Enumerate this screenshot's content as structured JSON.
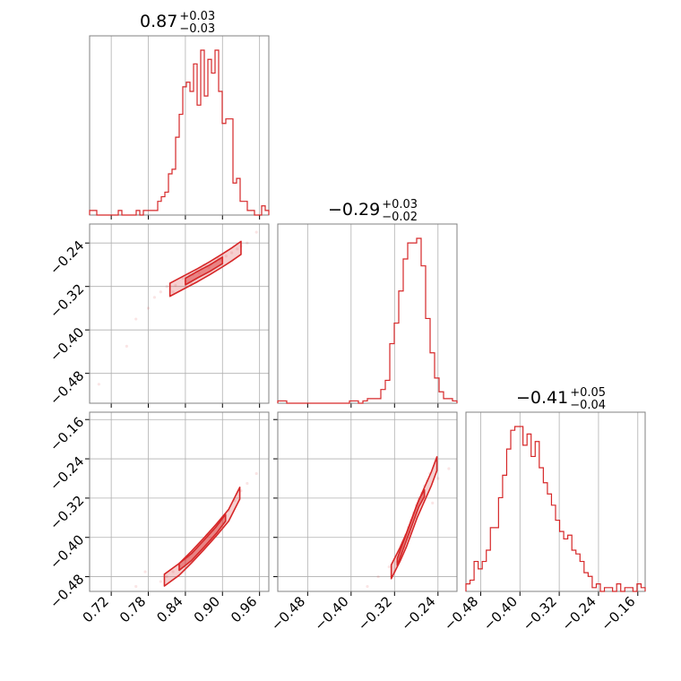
{
  "chart_data": {
    "type": "corner",
    "color": "#d62728",
    "grid": true,
    "parameters": [
      {
        "title": {
          "median": "0.87",
          "plus": "+0.03",
          "minus": "−0.03"
        },
        "range": [
          0.685,
          0.975
        ],
        "ticks": [
          0.72,
          0.78,
          0.84,
          0.9,
          0.96
        ],
        "tick_labels": [
          "0.72",
          "0.78",
          "0.84",
          "0.90",
          "0.96"
        ]
      },
      {
        "title": {
          "median": "−0.29",
          "plus": "+0.03",
          "minus": "−0.02"
        },
        "range": [
          -0.535,
          -0.205
        ],
        "ticks": [
          -0.48,
          -0.4,
          -0.32,
          -0.24
        ],
        "tick_labels": [
          "−0.48",
          "−0.40",
          "−0.32",
          "−0.24"
        ]
      },
      {
        "title": {
          "median": "−0.41",
          "plus": "+0.05",
          "minus": "−0.04"
        },
        "range": [
          -0.51,
          -0.145
        ],
        "ticks": [
          -0.48,
          -0.4,
          -0.32,
          -0.24,
          -0.16
        ],
        "tick_labels": [
          "−0.48",
          "−0.40",
          "−0.32",
          "−0.24",
          "−0.16"
        ]
      }
    ],
    "histograms": [
      {
        "param": 0,
        "bins": [
          0.685,
          0.975
        ],
        "counts": [
          1,
          1,
          0,
          0,
          0,
          0,
          0,
          0,
          1,
          0,
          0,
          0,
          0,
          1,
          0,
          1,
          1,
          1,
          1,
          3,
          4,
          5,
          9,
          10,
          17,
          22,
          28,
          29,
          27,
          33,
          24,
          36,
          26,
          34,
          31,
          36,
          27,
          20,
          21,
          21,
          7,
          8,
          3,
          3,
          1,
          1,
          0,
          0,
          2,
          1
        ]
      },
      {
        "param": 1,
        "bins": [
          -0.535,
          -0.205
        ],
        "counts": [
          1,
          1,
          0,
          0,
          0,
          0,
          0,
          0,
          0,
          0,
          0,
          0,
          0,
          0,
          0,
          0,
          1,
          1,
          0,
          1,
          2,
          2,
          2,
          6,
          10,
          26,
          35,
          49,
          63,
          70,
          70,
          72,
          60,
          37,
          22,
          11,
          5,
          2,
          2,
          1
        ]
      },
      {
        "param": 2,
        "bins": [
          -0.51,
          -0.145
        ],
        "counts": [
          2,
          3,
          8,
          6,
          8,
          11,
          17,
          17,
          25,
          31,
          38,
          43,
          44,
          44,
          39,
          42,
          36,
          40,
          33,
          29,
          26,
          23,
          19,
          16,
          14,
          15,
          11,
          10,
          8,
          5,
          4,
          1,
          2,
          0,
          1,
          1,
          0,
          2,
          0,
          1,
          1,
          0,
          2,
          1
        ]
      }
    ],
    "pairs": [
      {
        "x": 0,
        "y": 1,
        "correlation": "positive",
        "samples": [
          [
            0.824,
            -0.318
          ],
          [
            0.836,
            -0.305
          ],
          [
            0.847,
            -0.299
          ],
          [
            0.858,
            -0.292
          ],
          [
            0.866,
            -0.287
          ],
          [
            0.874,
            -0.283
          ],
          [
            0.881,
            -0.279
          ],
          [
            0.889,
            -0.274
          ],
          [
            0.897,
            -0.27
          ],
          [
            0.906,
            -0.264
          ],
          [
            0.915,
            -0.258
          ],
          [
            0.924,
            -0.251
          ],
          [
            0.93,
            -0.246
          ],
          [
            0.84,
            -0.31
          ],
          [
            0.852,
            -0.298
          ],
          [
            0.862,
            -0.295
          ],
          [
            0.87,
            -0.28
          ],
          [
            0.878,
            -0.285
          ],
          [
            0.893,
            -0.268
          ],
          [
            0.81,
            -0.32
          ],
          [
            0.8,
            -0.33
          ],
          [
            0.79,
            -0.34
          ],
          [
            0.78,
            -0.36
          ],
          [
            0.76,
            -0.38
          ],
          [
            0.745,
            -0.43
          ],
          [
            0.7,
            -0.5
          ],
          [
            0.955,
            -0.22
          ],
          [
            0.94,
            -0.24
          ],
          [
            0.82,
            -0.33
          ],
          [
            0.85,
            -0.315
          ]
        ],
        "contours": [
          {
            "level": "outer",
            "ridge": [
              [
                0.815,
                -0.326
              ],
              [
                0.84,
                -0.311
              ],
              [
                0.86,
                -0.299
              ],
              [
                0.88,
                -0.286
              ],
              [
                0.9,
                -0.272
              ],
              [
                0.915,
                -0.261
              ],
              [
                0.93,
                -0.249
              ]
            ],
            "half_width": 0.012
          },
          {
            "level": "inner",
            "ridge": [
              [
                0.84,
                -0.311
              ],
              [
                0.86,
                -0.298
              ],
              [
                0.88,
                -0.286
              ],
              [
                0.9,
                -0.272
              ]
            ],
            "half_width": 0.006
          }
        ]
      },
      {
        "x": 0,
        "y": 2,
        "correlation": "positive",
        "samples": [
          [
            0.81,
            -0.48
          ],
          [
            0.82,
            -0.47
          ],
          [
            0.83,
            -0.458
          ],
          [
            0.84,
            -0.445
          ],
          [
            0.85,
            -0.432
          ],
          [
            0.86,
            -0.418
          ],
          [
            0.87,
            -0.404
          ],
          [
            0.88,
            -0.39
          ],
          [
            0.89,
            -0.375
          ],
          [
            0.9,
            -0.36
          ],
          [
            0.91,
            -0.345
          ],
          [
            0.92,
            -0.325
          ],
          [
            0.93,
            -0.305
          ],
          [
            0.845,
            -0.44
          ],
          [
            0.865,
            -0.41
          ],
          [
            0.885,
            -0.385
          ],
          [
            0.775,
            -0.47
          ],
          [
            0.76,
            -0.5
          ],
          [
            0.955,
            -0.27
          ],
          [
            0.94,
            -0.29
          ],
          [
            0.8,
            -0.49
          ],
          [
            0.83,
            -0.465
          ],
          [
            0.875,
            -0.395
          ],
          [
            0.895,
            -0.37
          ]
        ],
        "contours": [
          {
            "level": "outer",
            "ridge": [
              [
                0.806,
                -0.487
              ],
              [
                0.83,
                -0.465
              ],
              [
                0.85,
                -0.44
              ],
              [
                0.87,
                -0.413
              ],
              [
                0.89,
                -0.385
              ],
              [
                0.91,
                -0.355
              ],
              [
                0.928,
                -0.31
              ]
            ],
            "half_width": 0.012
          },
          {
            "level": "inner",
            "ridge": [
              [
                0.83,
                -0.46
              ],
              [
                0.85,
                -0.44
              ],
              [
                0.87,
                -0.413
              ],
              [
                0.89,
                -0.385
              ],
              [
                0.905,
                -0.36
              ]
            ],
            "half_width": 0.007
          }
        ]
      },
      {
        "x": 1,
        "y": 2,
        "correlation": "positive",
        "samples": [
          [
            -0.32,
            -0.47
          ],
          [
            -0.315,
            -0.45
          ],
          [
            -0.31,
            -0.43
          ],
          [
            -0.305,
            -0.41
          ],
          [
            -0.3,
            -0.395
          ],
          [
            -0.295,
            -0.38
          ],
          [
            -0.29,
            -0.365
          ],
          [
            -0.285,
            -0.35
          ],
          [
            -0.28,
            -0.335
          ],
          [
            -0.275,
            -0.32
          ],
          [
            -0.27,
            -0.31
          ],
          [
            -0.265,
            -0.295
          ],
          [
            -0.26,
            -0.285
          ],
          [
            -0.255,
            -0.27
          ],
          [
            -0.312,
            -0.44
          ],
          [
            -0.302,
            -0.42
          ],
          [
            -0.292,
            -0.39
          ],
          [
            -0.282,
            -0.36
          ],
          [
            -0.35,
            -0.48
          ],
          [
            -0.37,
            -0.5
          ],
          [
            -0.22,
            -0.26
          ],
          [
            -0.24,
            -0.28
          ],
          [
            -0.33,
            -0.46
          ],
          [
            -0.25,
            -0.33
          ]
        ],
        "contours": [
          {
            "level": "outer",
            "ridge": [
              [
                -0.326,
                -0.47
              ],
              [
                -0.31,
                -0.435
              ],
              [
                -0.298,
                -0.405
              ],
              [
                -0.288,
                -0.375
              ],
              [
                -0.278,
                -0.345
              ],
              [
                -0.266,
                -0.315
              ],
              [
                -0.252,
                -0.28
              ],
              [
                -0.242,
                -0.25
              ]
            ],
            "half_width": 0.014
          },
          {
            "level": "inner",
            "ridge": [
              [
                -0.315,
                -0.45
              ],
              [
                -0.305,
                -0.42
              ],
              [
                -0.295,
                -0.39
              ],
              [
                -0.285,
                -0.36
              ],
              [
                -0.275,
                -0.33
              ],
              [
                -0.265,
                -0.31
              ]
            ],
            "half_width": 0.007
          }
        ]
      }
    ]
  }
}
